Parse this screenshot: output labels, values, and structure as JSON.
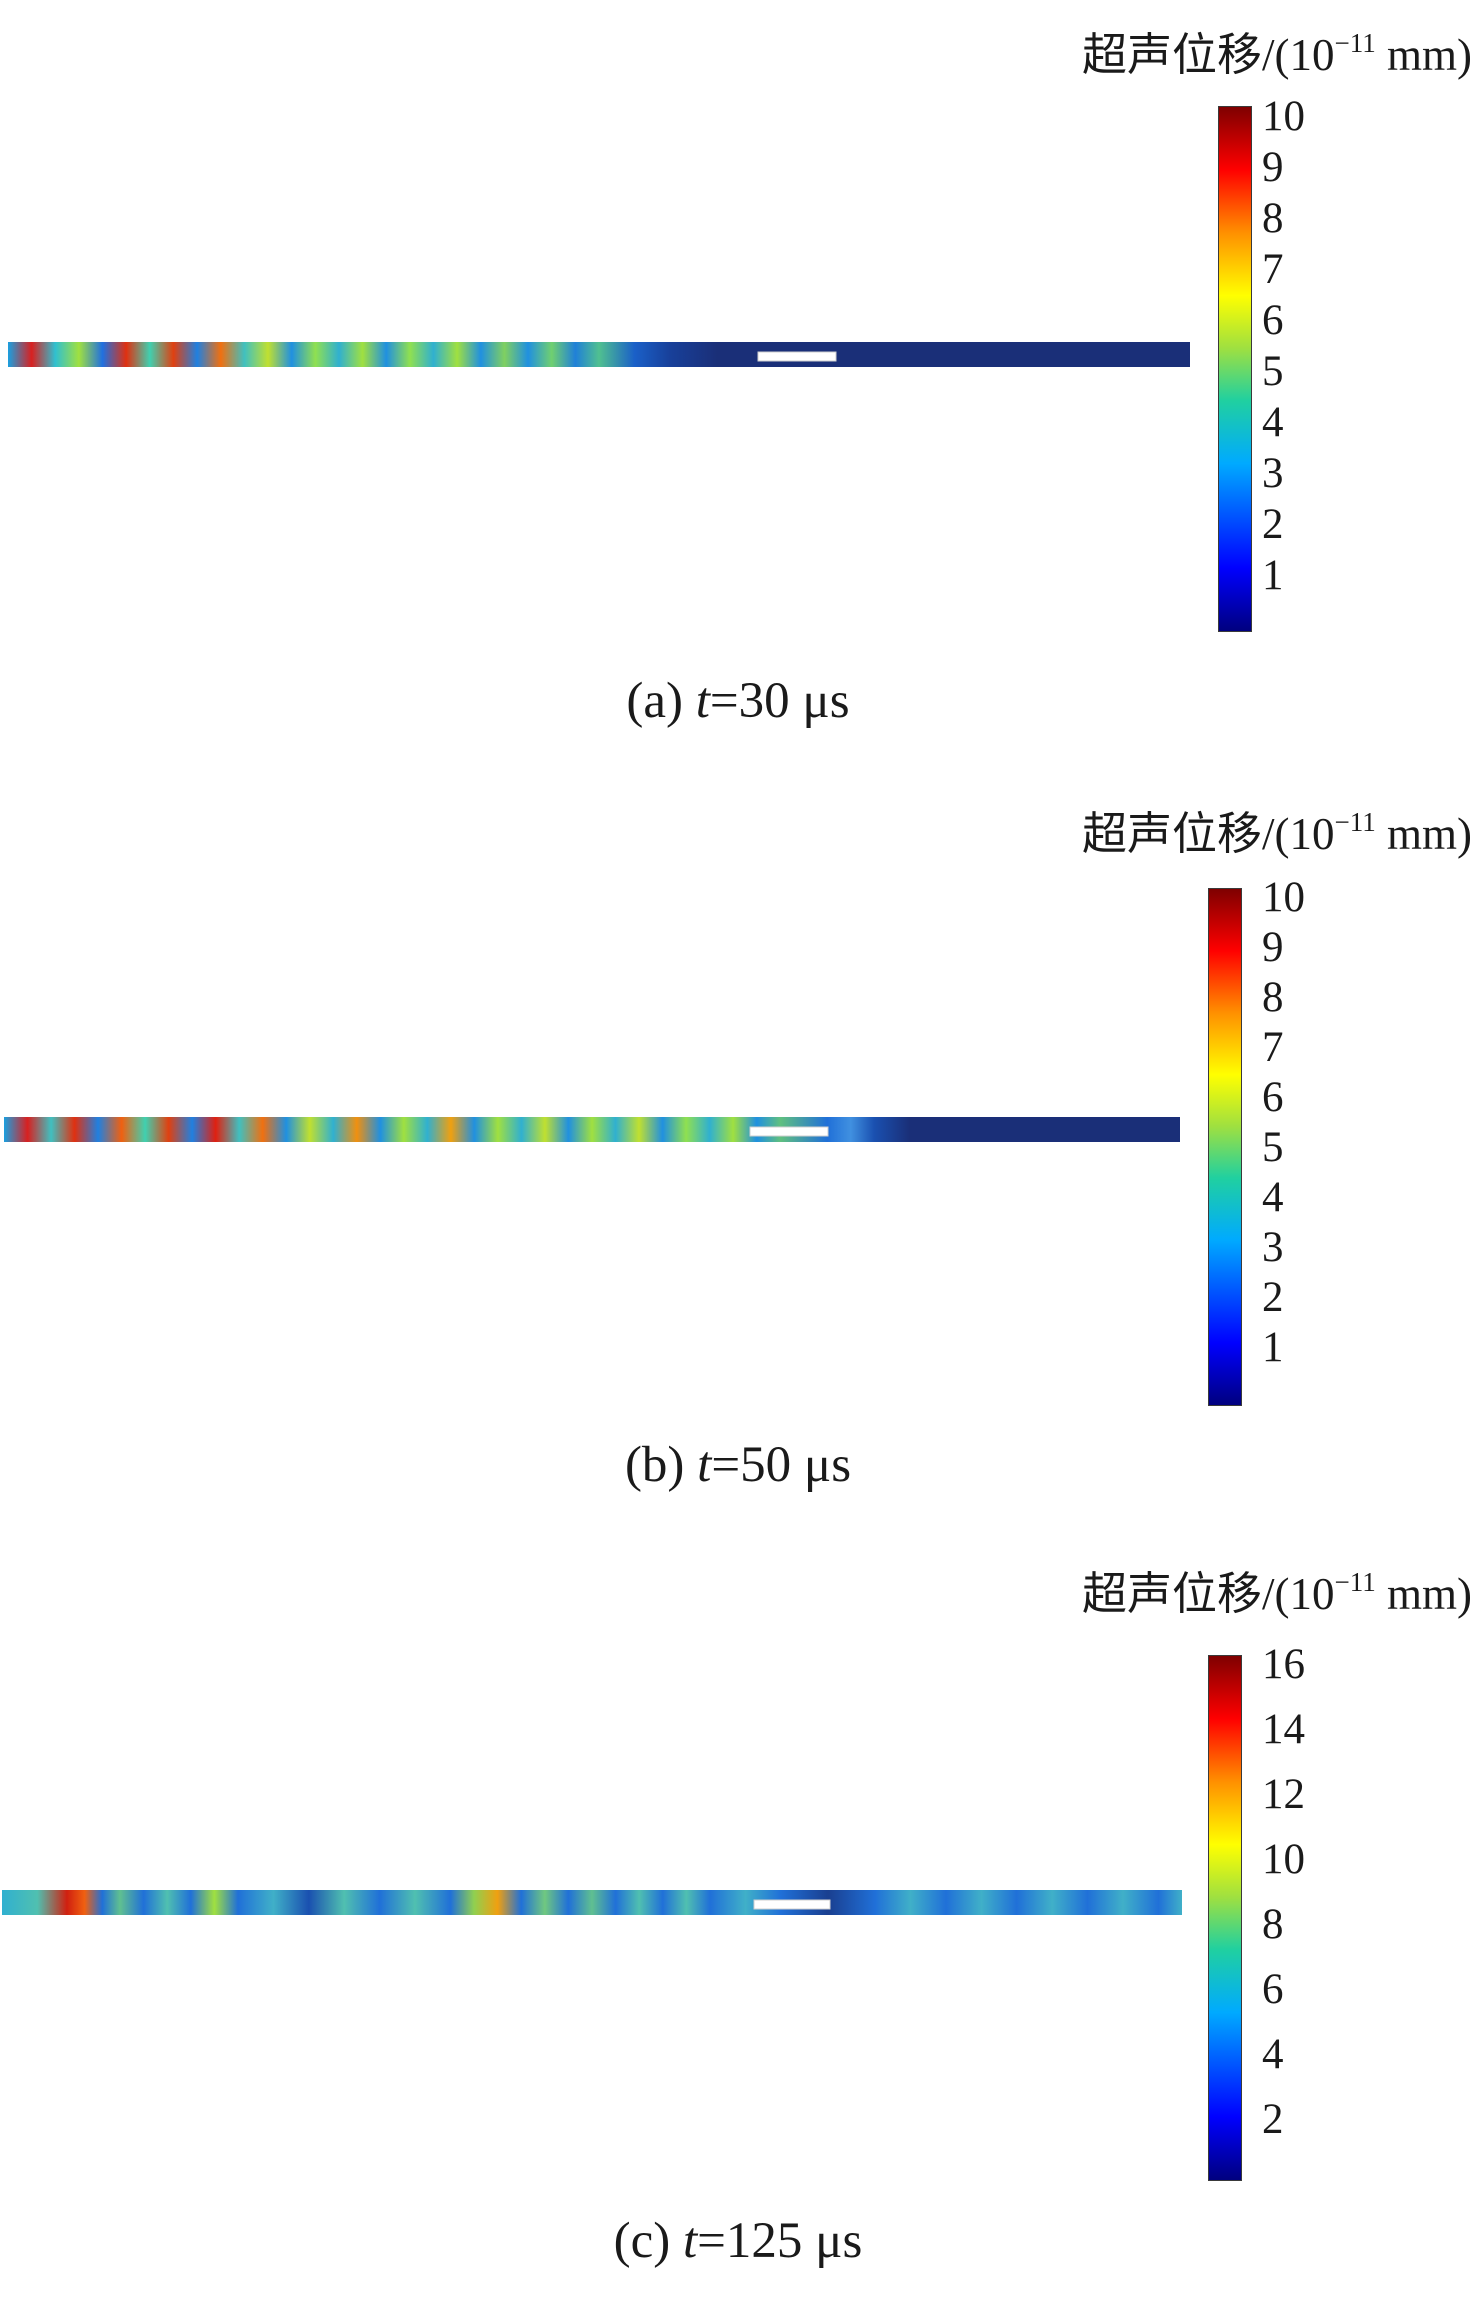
{
  "panels": [
    {
      "unit_prefix": "超声位移/(10",
      "unit_exp": "−11",
      "unit_suffix": " mm)",
      "ticks": [
        "10",
        "9",
        "8",
        "7",
        "6",
        "5",
        "4",
        "3",
        "2",
        "1"
      ],
      "caption_prefix": "(a) ",
      "caption_var": "t",
      "caption_value": "=30 μs"
    },
    {
      "unit_prefix": "超声位移/(10",
      "unit_exp": "−11",
      "unit_suffix": " mm)",
      "ticks": [
        "10",
        "9",
        "8",
        "7",
        "6",
        "5",
        "4",
        "3",
        "2",
        "1"
      ],
      "caption_prefix": "(b) ",
      "caption_var": "t",
      "caption_value": "=50 μs"
    },
    {
      "unit_prefix": "超声位移/(10",
      "unit_exp": "−11",
      "unit_suffix": " mm)",
      "ticks": [
        "16",
        "14",
        "12",
        "10",
        "8",
        "6",
        "4",
        "2"
      ],
      "caption_prefix": "(c) ",
      "caption_var": "t",
      "caption_value": "=125 μs"
    }
  ]
}
